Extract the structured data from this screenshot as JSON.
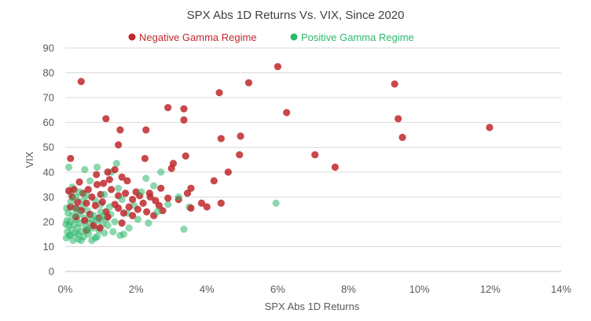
{
  "chart_data": {
    "type": "scatter",
    "title": "SPX Abs 1D Returns Vs. VIX, Since 2020",
    "xlabel": "SPX Abs 1D Returns",
    "ylabel": "VIX",
    "xlim": [
      0,
      0.14
    ],
    "ylim": [
      0,
      90
    ],
    "x_ticks": [
      0,
      0.02,
      0.04,
      0.06,
      0.08,
      0.1,
      0.12,
      0.14
    ],
    "x_tick_labels": [
      "0%",
      "2%",
      "4%",
      "6%",
      "8%",
      "10%",
      "12%",
      "14%"
    ],
    "y_ticks": [
      0,
      10,
      20,
      30,
      40,
      50,
      60,
      70,
      80,
      90
    ],
    "y_tick_labels": [
      "0",
      "10",
      "20",
      "30",
      "40",
      "50",
      "60",
      "70",
      "80",
      "90"
    ],
    "grid": "horizontal",
    "legend_position": "top",
    "series": [
      {
        "name": "Negative Gamma Regime",
        "color": "#c0282d",
        "points": [
          [
            0.0045,
            76.5
          ],
          [
            0.0115,
            61.5
          ],
          [
            0.0155,
            57.0
          ],
          [
            0.015,
            51.0
          ],
          [
            0.0228,
            57.0
          ],
          [
            0.029,
            66.0
          ],
          [
            0.0335,
            65.5
          ],
          [
            0.0335,
            61.0
          ],
          [
            0.034,
            46.5
          ],
          [
            0.0305,
            43.5
          ],
          [
            0.03,
            41.5
          ],
          [
            0.0225,
            45.5
          ],
          [
            0.0435,
            72.0
          ],
          [
            0.0518,
            76.0
          ],
          [
            0.06,
            82.5
          ],
          [
            0.0625,
            64.0
          ],
          [
            0.0495,
            54.5
          ],
          [
            0.044,
            53.5
          ],
          [
            0.0492,
            47.0
          ],
          [
            0.046,
            40.0
          ],
          [
            0.042,
            36.5
          ],
          [
            0.0705,
            47.0
          ],
          [
            0.0762,
            42.0
          ],
          [
            0.093,
            75.5
          ],
          [
            0.094,
            61.5
          ],
          [
            0.0952,
            54.0
          ],
          [
            0.1198,
            58.0
          ],
          [
            0.044,
            27.5
          ],
          [
            0.04,
            26.0
          ],
          [
            0.0385,
            27.5
          ],
          [
            0.0355,
            33.5
          ],
          [
            0.0345,
            31.5
          ],
          [
            0.0355,
            25.5
          ],
          [
            0.032,
            29.0
          ],
          [
            0.029,
            29.5
          ],
          [
            0.027,
            33.5
          ],
          [
            0.0265,
            26.5
          ],
          [
            0.0255,
            28.5
          ],
          [
            0.0238,
            31.5
          ],
          [
            0.022,
            27.5
          ],
          [
            0.021,
            30.5
          ],
          [
            0.02,
            32.0
          ],
          [
            0.019,
            29.0
          ],
          [
            0.018,
            26.0
          ],
          [
            0.017,
            31.5
          ],
          [
            0.0165,
            23.5
          ],
          [
            0.016,
            19.5
          ],
          [
            0.015,
            30.5
          ],
          [
            0.014,
            27.0
          ],
          [
            0.013,
            33.0
          ],
          [
            0.0125,
            37.0
          ],
          [
            0.0115,
            24.0
          ],
          [
            0.0105,
            28.0
          ],
          [
            0.01,
            31.0
          ],
          [
            0.0095,
            21.5
          ],
          [
            0.009,
            35.0
          ],
          [
            0.0085,
            26.5
          ],
          [
            0.008,
            18.5
          ],
          [
            0.0075,
            30.0
          ],
          [
            0.007,
            23.0
          ],
          [
            0.0065,
            33.0
          ],
          [
            0.006,
            27.5
          ],
          [
            0.0055,
            20.5
          ],
          [
            0.005,
            31.5
          ],
          [
            0.0045,
            24.5
          ],
          [
            0.004,
            36.0
          ],
          [
            0.0035,
            28.0
          ],
          [
            0.003,
            22.0
          ],
          [
            0.0025,
            33.0
          ],
          [
            0.002,
            30.0
          ],
          [
            0.0015,
            45.5
          ],
          [
            0.0015,
            26.0
          ],
          [
            0.001,
            32.5
          ],
          [
            0.014,
            41.0
          ],
          [
            0.016,
            38.0
          ],
          [
            0.0175,
            36.5
          ],
          [
            0.012,
            40.0
          ],
          [
            0.0108,
            35.5
          ],
          [
            0.0088,
            39.0
          ],
          [
            0.019,
            22.5
          ],
          [
            0.0205,
            25.0
          ],
          [
            0.023,
            24.0
          ],
          [
            0.025,
            22.5
          ],
          [
            0.0275,
            24.5
          ],
          [
            0.0098,
            17.5
          ],
          [
            0.006,
            16.5
          ],
          [
            0.003,
            25.5
          ],
          [
            0.015,
            25.5
          ],
          [
            0.012,
            22.0
          ],
          [
            0.024,
            30.0
          ]
        ]
      },
      {
        "name": "Positive Gamma Regime",
        "color": "#2db86b",
        "points": [
          [
            0.001,
            42.0
          ],
          [
            0.0055,
            41.0
          ],
          [
            0.009,
            42.0
          ],
          [
            0.013,
            40.0
          ],
          [
            0.0145,
            43.5
          ],
          [
            0.027,
            40.0
          ],
          [
            0.0595,
            27.5
          ],
          [
            0.0335,
            17.0
          ],
          [
            0.025,
            34.5
          ],
          [
            0.0228,
            37.5
          ],
          [
            0.0215,
            32.0
          ],
          [
            0.0195,
            26.5
          ],
          [
            0.018,
            17.5
          ],
          [
            0.0165,
            15.0
          ],
          [
            0.0155,
            14.5
          ],
          [
            0.014,
            20.0
          ],
          [
            0.0135,
            16.0
          ],
          [
            0.0128,
            23.0
          ],
          [
            0.012,
            18.5
          ],
          [
            0.0115,
            21.0
          ],
          [
            0.011,
            15.5
          ],
          [
            0.0105,
            19.0
          ],
          [
            0.01,
            24.0
          ],
          [
            0.0095,
            16.5
          ],
          [
            0.009,
            20.5
          ],
          [
            0.0085,
            13.5
          ],
          [
            0.008,
            22.5
          ],
          [
            0.0078,
            17.5
          ],
          [
            0.0075,
            12.5
          ],
          [
            0.007,
            19.5
          ],
          [
            0.0066,
            15.0
          ],
          [
            0.0062,
            24.5
          ],
          [
            0.0058,
            18.0
          ],
          [
            0.0055,
            21.5
          ],
          [
            0.0052,
            14.0
          ],
          [
            0.0048,
            26.0
          ],
          [
            0.0045,
            16.0
          ],
          [
            0.0042,
            19.5
          ],
          [
            0.004,
            23.0
          ],
          [
            0.0037,
            13.0
          ],
          [
            0.0035,
            17.5
          ],
          [
            0.0032,
            21.0
          ],
          [
            0.003,
            25.0
          ],
          [
            0.0028,
            15.5
          ],
          [
            0.0025,
            19.0
          ],
          [
            0.0022,
            12.5
          ],
          [
            0.002,
            22.5
          ],
          [
            0.0018,
            17.0
          ],
          [
            0.0016,
            28.0
          ],
          [
            0.0014,
            20.0
          ],
          [
            0.0012,
            14.5
          ],
          [
            0.001,
            18.5
          ],
          [
            0.0008,
            23.5
          ],
          [
            0.0006,
            16.0
          ],
          [
            0.0005,
            20.5
          ],
          [
            0.0004,
            25.5
          ],
          [
            0.0003,
            13.5
          ],
          [
            0.0002,
            19.0
          ],
          [
            0.006,
            30.5
          ],
          [
            0.0085,
            28.5
          ],
          [
            0.011,
            31.0
          ],
          [
            0.015,
            33.5
          ],
          [
            0.004,
            32.0
          ],
          [
            0.002,
            34.0
          ],
          [
            0.007,
            36.5
          ],
          [
            0.01,
            27.0
          ],
          [
            0.0125,
            26.0
          ],
          [
            0.0175,
            23.5
          ],
          [
            0.0205,
            21.0
          ],
          [
            0.0235,
            19.5
          ],
          [
            0.026,
            24.0
          ],
          [
            0.029,
            27.0
          ],
          [
            0.032,
            30.0
          ],
          [
            0.035,
            26.0
          ],
          [
            0.016,
            29.0
          ],
          [
            0.005,
            28.5
          ],
          [
            0.003,
            30.0
          ],
          [
            0.0015,
            31.5
          ],
          [
            0.0065,
            17.0
          ],
          [
            0.009,
            14.0
          ],
          [
            0.0045,
            12.5
          ],
          [
            0.0015,
            14.5
          ],
          [
            0.0035,
            15.0
          ],
          [
            0.0075,
            21.0
          ],
          [
            0.0105,
            22.0
          ]
        ]
      }
    ]
  }
}
